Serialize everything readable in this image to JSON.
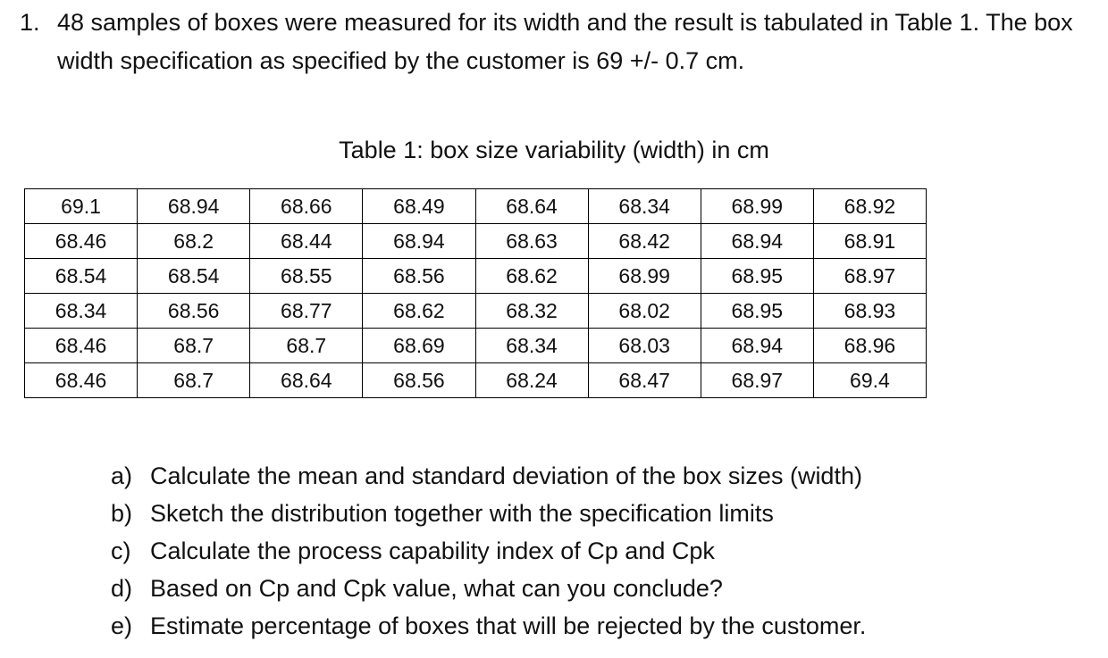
{
  "question": {
    "number": "1.",
    "text": "48 samples of boxes were measured for its width and the result is tabulated in Table 1. The box width specification as specified by the customer is 69 +/- 0.7 cm."
  },
  "table": {
    "caption": "Table 1: box size variability (width) in cm",
    "rows": [
      [
        "69.1",
        "68.94",
        "68.66",
        "68.49",
        "68.64",
        "68.34",
        "68.99",
        "68.92"
      ],
      [
        "68.46",
        "68.2",
        "68.44",
        "68.94",
        "68.63",
        "68.42",
        "68.94",
        "68.91"
      ],
      [
        "68.54",
        "68.54",
        "68.55",
        "68.56",
        "68.62",
        "68.99",
        "68.95",
        "68.97"
      ],
      [
        "68.34",
        "68.56",
        "68.77",
        "68.62",
        "68.32",
        "68.02",
        "68.95",
        "68.93"
      ],
      [
        "68.46",
        "68.7",
        "68.7",
        "68.69",
        "68.34",
        "68.03",
        "68.94",
        "68.96"
      ],
      [
        "68.46",
        "68.7",
        "68.64",
        "68.56",
        "68.24",
        "68.47",
        "68.97",
        "69.4"
      ]
    ]
  },
  "subquestions": [
    {
      "marker": "a)",
      "text": "Calculate the mean and standard deviation of the box sizes (width)"
    },
    {
      "marker": "b)",
      "text": "Sketch the distribution together with the specification limits"
    },
    {
      "marker": "c)",
      "text": "Calculate the process capability index of Cp and Cpk"
    },
    {
      "marker": "d)",
      "text": "Based on Cp and Cpk value, what can you conclude?"
    },
    {
      "marker": "e)",
      "text": "Estimate percentage of boxes that will be rejected by the customer."
    }
  ]
}
